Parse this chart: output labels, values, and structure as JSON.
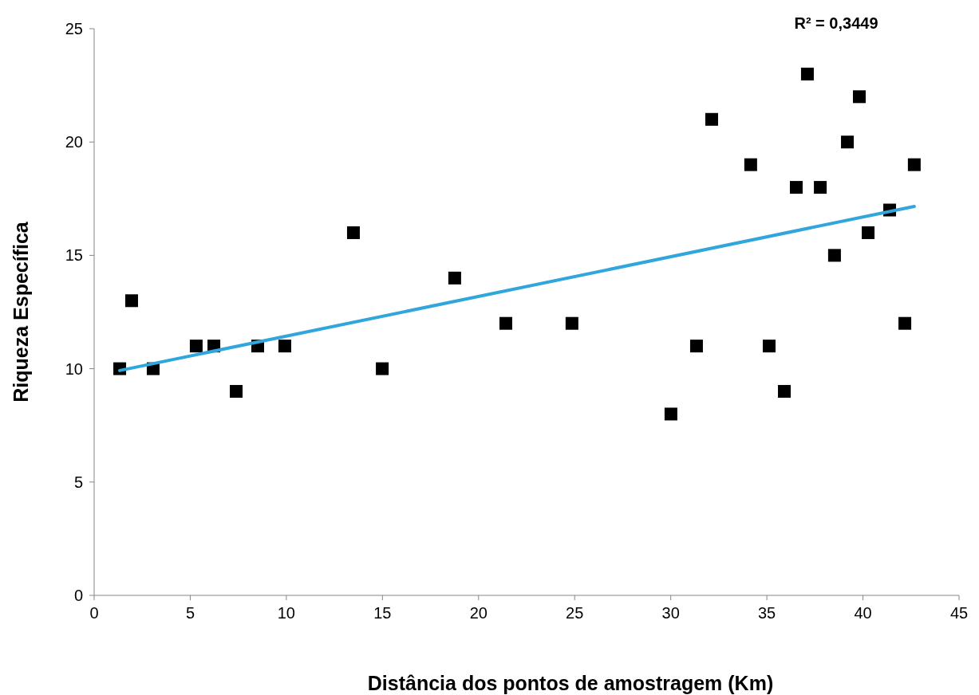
{
  "chart_data": {
    "type": "scatter",
    "xlabel": "Distância dos pontos de amostragem (Km)",
    "ylabel": "Riqueza Específica",
    "annotations": [
      "R² = 0,3449"
    ],
    "xlim": [
      0,
      45
    ],
    "xticks": [
      0,
      5,
      10,
      15,
      20,
      25,
      30,
      35,
      40,
      45
    ],
    "ylim": [
      0,
      25
    ],
    "yticks": [
      0,
      5,
      10,
      15,
      20,
      25
    ],
    "grid": false,
    "series": [
      {
        "marker": "square",
        "color": "#000000",
        "x": [
          1.33,
          1.95,
          3.07,
          5.31,
          6.23,
          7.39,
          8.51,
          9.92,
          13.49,
          14.99,
          18.76,
          21.42,
          24.86,
          30.01,
          31.34,
          32.13,
          34.16,
          35.12,
          35.91,
          36.53,
          37.11,
          37.78,
          38.52,
          39.19,
          39.81,
          40.27,
          41.39,
          42.18,
          42.67
        ],
        "values": [
          10,
          13,
          10,
          11,
          11,
          9,
          11,
          11,
          16,
          10,
          14,
          12,
          12,
          8,
          11,
          21,
          19,
          11,
          9,
          18,
          23,
          18,
          15,
          20,
          22,
          16,
          17,
          12,
          19
        ]
      },
      {
        "type": "line",
        "color": "#31a6dc",
        "x": [
          1.33,
          42.67
        ],
        "values": [
          9.92,
          17.16
        ]
      }
    ]
  }
}
